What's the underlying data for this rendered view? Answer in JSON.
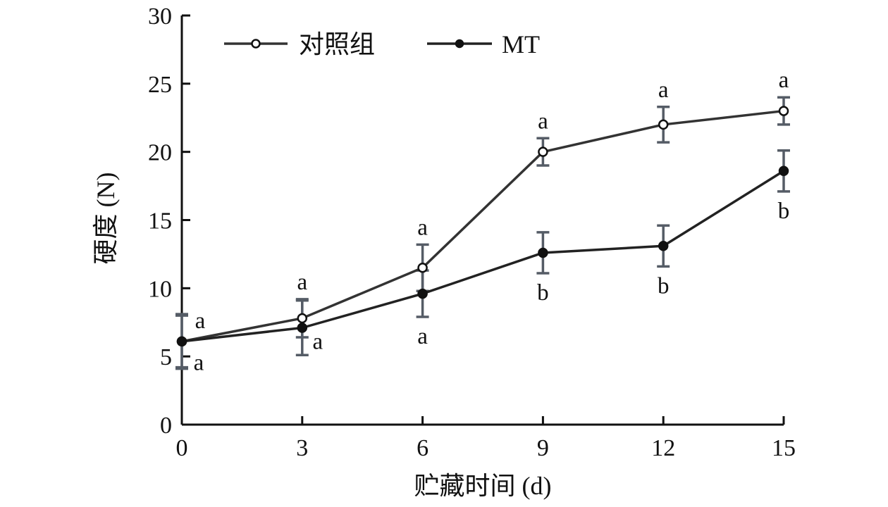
{
  "chart_data": {
    "type": "line",
    "x": [
      0,
      3,
      6,
      9,
      12,
      15
    ],
    "xlabel": "贮藏时间 (d)",
    "ylabel": "硬度 (N)",
    "xlim": [
      0,
      15
    ],
    "ylim": [
      0,
      30
    ],
    "x_ticks": [
      "0",
      "3",
      "6",
      "9",
      "12",
      "15"
    ],
    "y_ticks": [
      "0",
      "5",
      "10",
      "15",
      "20",
      "25",
      "30"
    ],
    "grid": false,
    "legend_position": "top-left",
    "series": [
      {
        "name": "对照组",
        "marker": "open-circle",
        "color": "#333333",
        "values": [
          6.1,
          7.8,
          11.5,
          20.0,
          22.0,
          23.0
        ],
        "errors": [
          2.0,
          1.4,
          1.7,
          1.0,
          1.3,
          1.0
        ],
        "significance": [
          "a",
          "a",
          "a",
          "a",
          "a",
          "a"
        ]
      },
      {
        "name": "MT",
        "marker": "filled-circle",
        "color": "#222222",
        "values": [
          6.1,
          7.1,
          9.6,
          12.6,
          13.1,
          18.6
        ],
        "errors": [
          1.9,
          2.0,
          1.7,
          1.5,
          1.5,
          1.5
        ],
        "significance": [
          "a",
          "a",
          "a",
          "b",
          "b",
          "b"
        ]
      }
    ],
    "error_bar_color": "#555c66"
  }
}
